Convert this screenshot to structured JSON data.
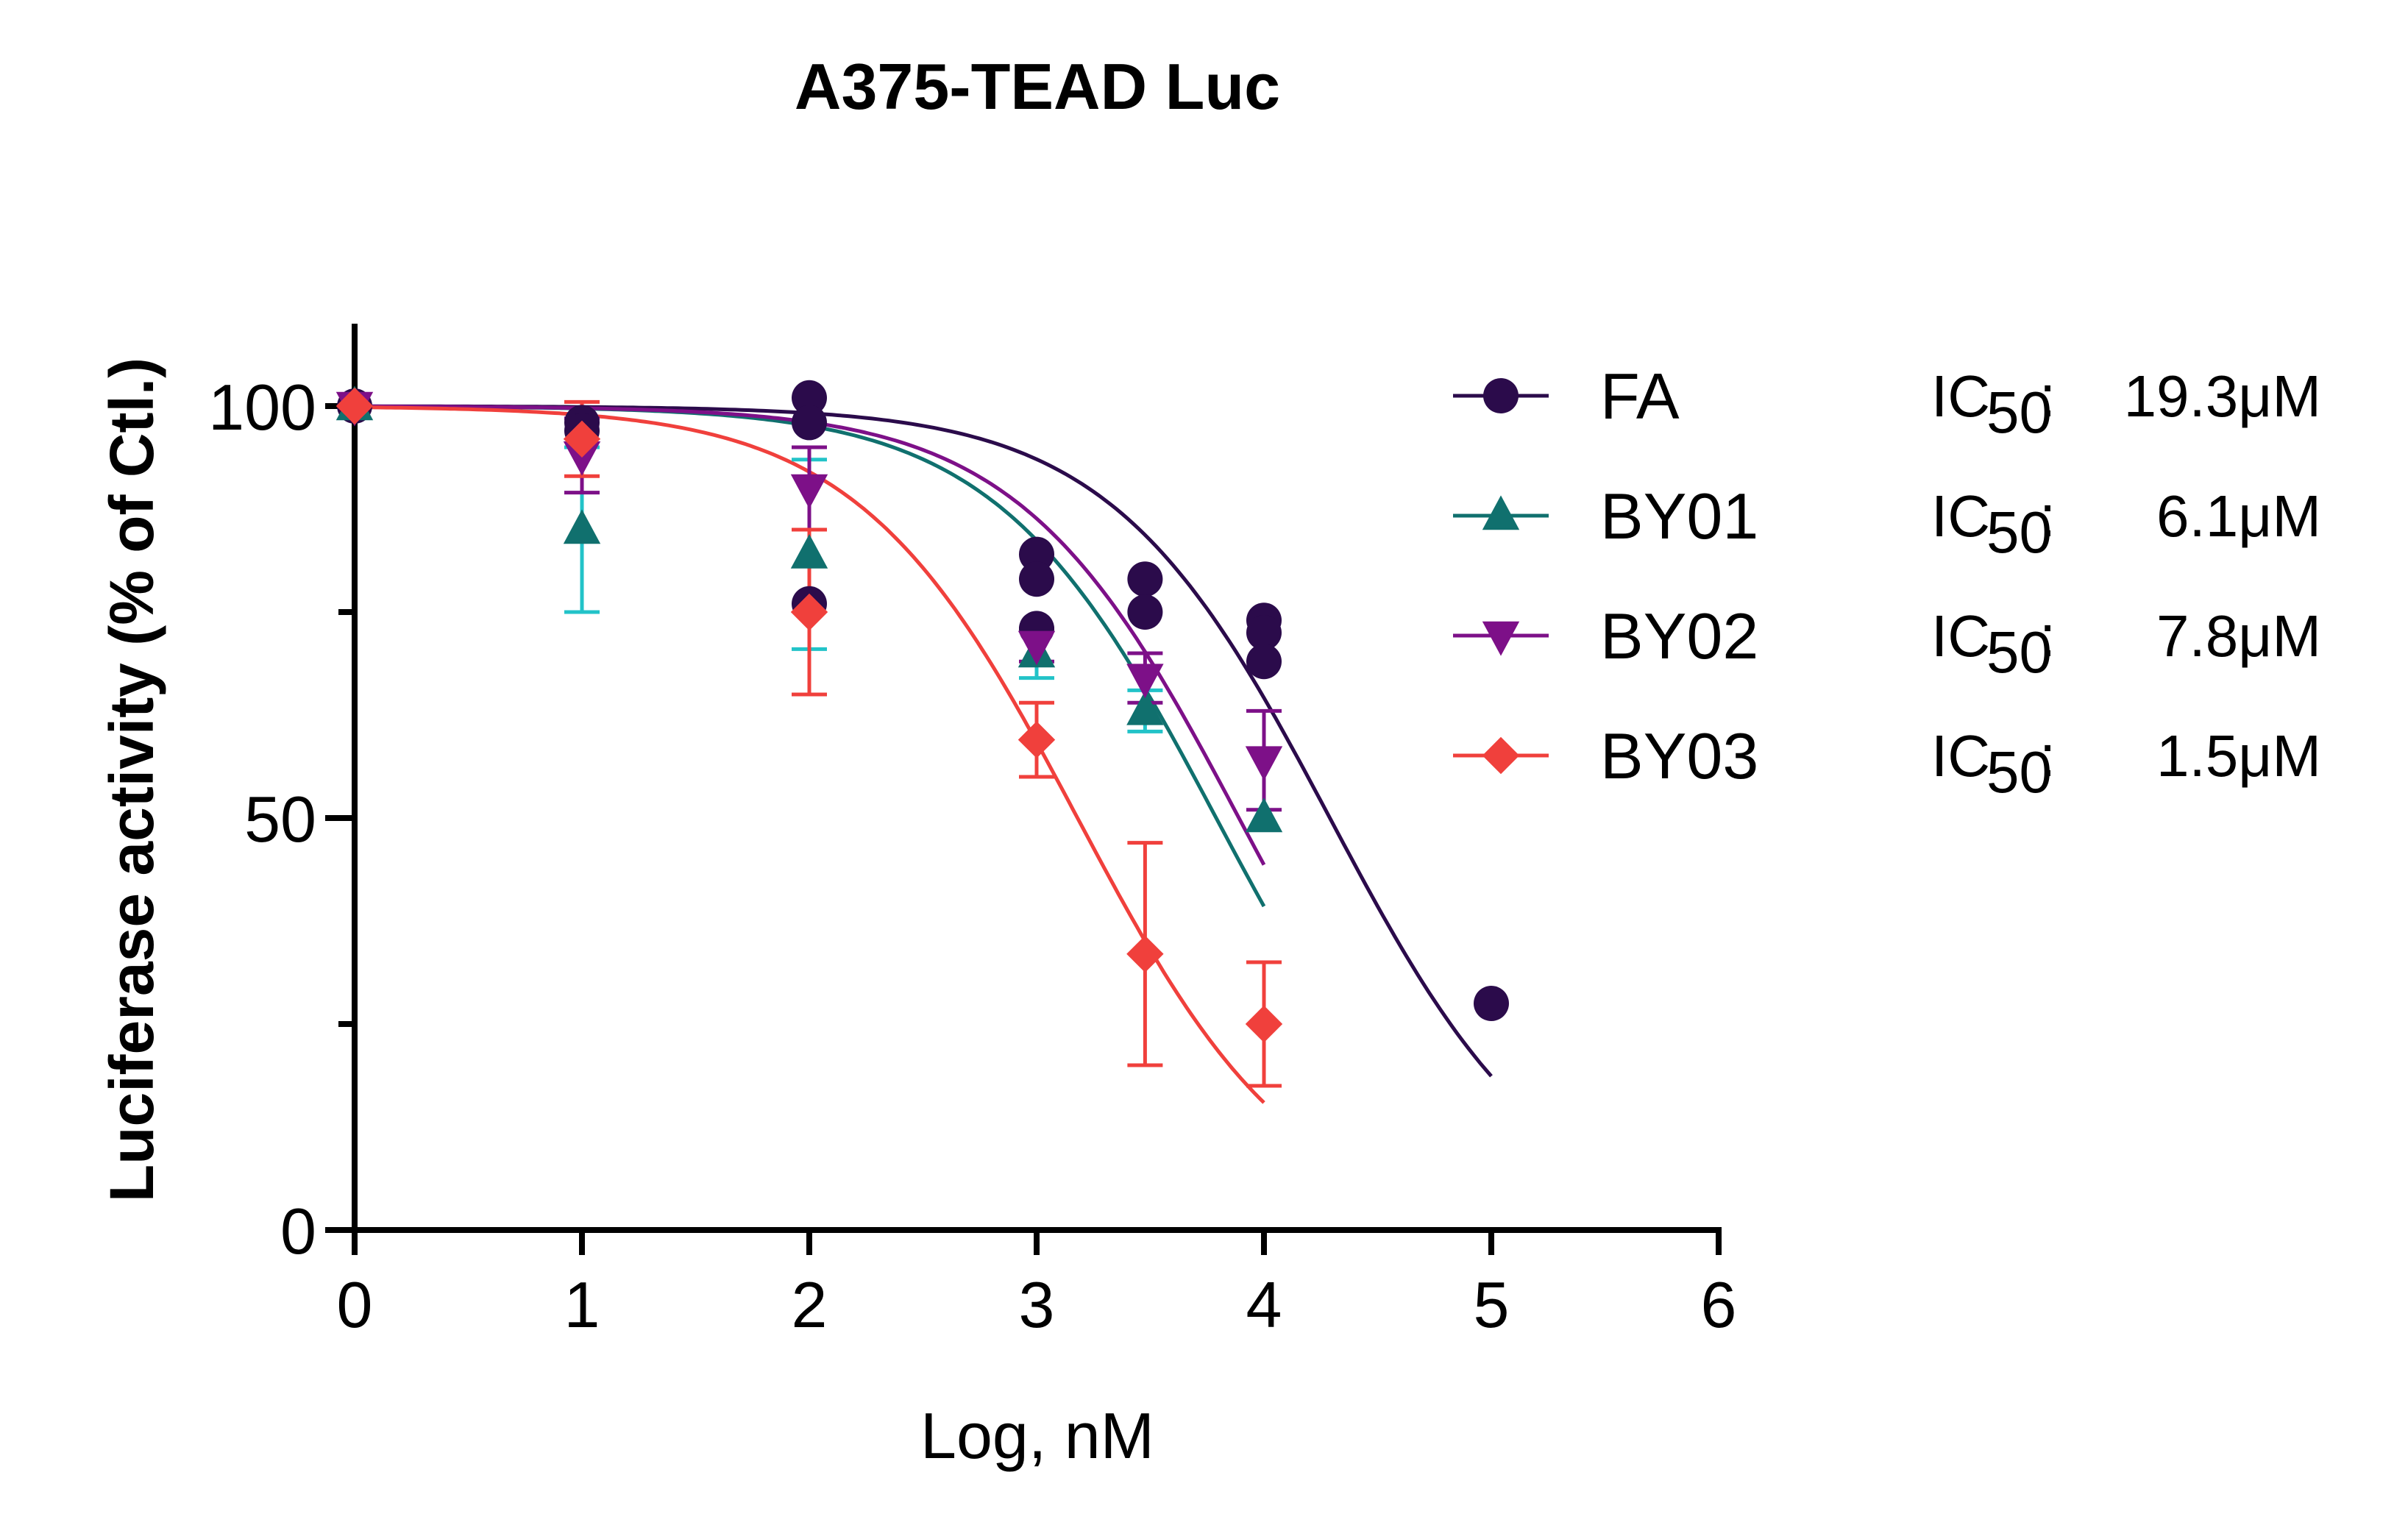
{
  "chart_data": {
    "type": "scatter",
    "title": "A375-TEAD Luc",
    "xlabel": "Log, nM",
    "ylabel": "Luciferase activity (% of Ctl.)",
    "xlim": [
      0,
      6
    ],
    "ylim": [
      0,
      110
    ],
    "xticks": [
      "0",
      "1",
      "2",
      "3",
      "4",
      "5",
      "6"
    ],
    "yticks": [
      "0",
      "50",
      "100"
    ],
    "ic50_label": "IC",
    "ic50_sub": "50",
    "ic50_colon": ":",
    "series": [
      {
        "name": "FA",
        "marker": "circle",
        "color": "#2b0b4b",
        "ic50": "19.3μM",
        "points": [
          {
            "x": 0,
            "y": 100
          },
          {
            "x": 1,
            "y": 98
          },
          {
            "x": 1,
            "y": 97
          },
          {
            "x": 2,
            "y": 101
          },
          {
            "x": 2,
            "y": 98
          },
          {
            "x": 2,
            "y": 76
          },
          {
            "x": 3,
            "y": 82
          },
          {
            "x": 3,
            "y": 79
          },
          {
            "x": 3,
            "y": 73
          },
          {
            "x": 3.477,
            "y": 79
          },
          {
            "x": 3.477,
            "y": 75
          },
          {
            "x": 4,
            "y": 74
          },
          {
            "x": 4,
            "y": 72.5
          },
          {
            "x": 4,
            "y": 69
          },
          {
            "x": 5,
            "y": 27.5
          }
        ],
        "curve": {
          "top": 100,
          "bottom": 0,
          "logIC50": 4.29,
          "hill": 0.9,
          "xmax": 5
        }
      },
      {
        "name": "BY01",
        "marker": "triangle-up",
        "color": "#10706e",
        "errcolor": "#22c3c8",
        "ic50": "6.1μM",
        "points": [
          {
            "x": 0,
            "y": 100,
            "err": 0
          },
          {
            "x": 1,
            "y": 85,
            "err": 10
          },
          {
            "x": 2,
            "y": 82,
            "err": 11.5
          },
          {
            "x": 3,
            "y": 70,
            "err": 3
          },
          {
            "x": 3.477,
            "y": 63,
            "err": 2.5
          },
          {
            "x": 4,
            "y": 50,
            "err": 0
          }
        ],
        "curve": {
          "top": 100,
          "bottom": 0,
          "logIC50": 3.79,
          "hill": 0.9,
          "xmax": 4
        }
      },
      {
        "name": "BY02",
        "marker": "triangle-down",
        "color": "#7d1088",
        "ic50": "7.8μM",
        "points": [
          {
            "x": 0,
            "y": 100,
            "err": 0
          },
          {
            "x": 1,
            "y": 94,
            "err": 4.5
          },
          {
            "x": 2,
            "y": 90,
            "err": 5
          },
          {
            "x": 3,
            "y": 71,
            "err": 2
          },
          {
            "x": 3.477,
            "y": 67,
            "err": 3
          },
          {
            "x": 4,
            "y": 57,
            "err": 6
          }
        ],
        "curve": {
          "top": 100,
          "bottom": 0,
          "logIC50": 3.89,
          "hill": 0.9,
          "xmax": 4
        }
      },
      {
        "name": "BY03",
        "marker": "diamond",
        "color": "#f0403c",
        "ic50": "1.5μM",
        "points": [
          {
            "x": 0,
            "y": 100,
            "err": 0
          },
          {
            "x": 1,
            "y": 96,
            "err": 4.5
          },
          {
            "x": 2,
            "y": 75,
            "err": 10
          },
          {
            "x": 3,
            "y": 59.5,
            "err": 4.5
          },
          {
            "x": 3.477,
            "y": 33.5,
            "err": 13.5
          },
          {
            "x": 4,
            "y": 25,
            "err": 7.5
          }
        ],
        "curve": {
          "top": 100,
          "bottom": 0,
          "logIC50": 3.18,
          "hill": 0.9,
          "xmax": 4
        }
      }
    ]
  }
}
